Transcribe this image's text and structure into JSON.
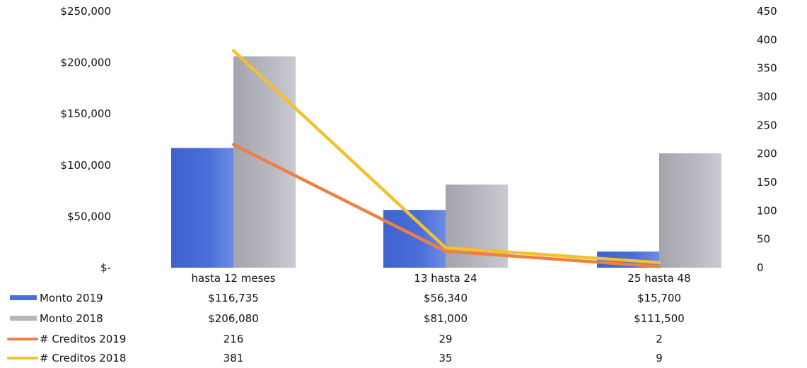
{
  "chart_data": {
    "type": "bar",
    "title": "",
    "categories": [
      "hasta 12 meses",
      "13 hasta 24",
      "25 hasta 48"
    ],
    "y_left": {
      "min": 0,
      "max": 250000,
      "ticks": [
        0,
        50000,
        100000,
        150000,
        200000,
        250000
      ],
      "tick_labels": [
        "$-",
        "$50,000",
        "$100,000",
        "$150,000",
        "$200,000",
        "$250,000"
      ]
    },
    "y_right": {
      "min": 0,
      "max": 450,
      "ticks": [
        0,
        50,
        100,
        150,
        200,
        250,
        300,
        350,
        400,
        450
      ],
      "tick_labels": [
        "0",
        "50",
        "100",
        "150",
        "200",
        "250",
        "300",
        "350",
        "400",
        "450"
      ]
    },
    "series": [
      {
        "name": "Monto 2019",
        "type": "bar",
        "axis": "left",
        "color": "#4a6fd8",
        "values": [
          116735,
          56340,
          15700
        ],
        "value_labels": [
          "$116,735",
          "$56,340",
          "$15,700"
        ]
      },
      {
        "name": "Monto 2018",
        "type": "bar",
        "axis": "left",
        "color": "#b5b5bd",
        "values": [
          206080,
          81000,
          111500
        ],
        "value_labels": [
          "$206,080",
          "$81,000",
          "$111,500"
        ]
      },
      {
        "name": "# Creditos 2019",
        "type": "line",
        "axis": "right",
        "color": "#ef7f45",
        "values": [
          216,
          29,
          2
        ],
        "value_labels": [
          "216",
          "29",
          "2"
        ]
      },
      {
        "name": "# Creditos 2018",
        "type": "line",
        "axis": "right",
        "color": "#f2c12e",
        "values": [
          381,
          35,
          9
        ],
        "value_labels": [
          "381",
          "35",
          "9"
        ]
      }
    ],
    "grid": false,
    "legend": "data-table-left"
  }
}
